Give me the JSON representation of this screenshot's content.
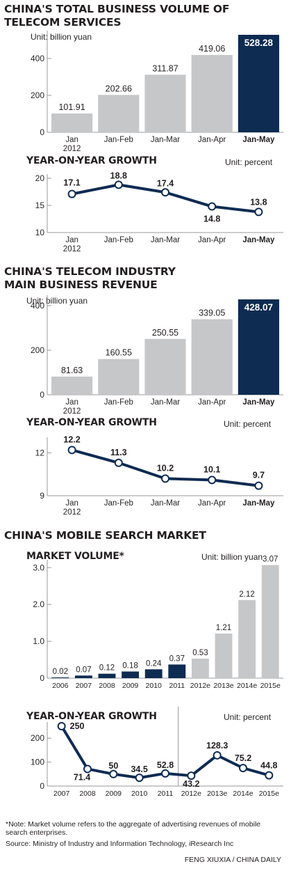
{
  "colors": {
    "gray": "#c6c7c9",
    "navy": "#0e2b52",
    "axis": "#9a9a9a",
    "text": "#231f20"
  },
  "section1": {
    "title1": "CHINA'S TOTAL BUSINESS VOLUME OF",
    "title2": "TELECOM SERVICES",
    "unit": "Unit: billion yuan",
    "growth_title": "YEAR-ON-YEAR GROWTH",
    "growth_unit": "Unit: percent"
  },
  "section2": {
    "title1": "CHINA'S TELECOM INDUSTRY",
    "title2": "MAIN BUSINESS REVENUE",
    "unit": "Unit: billion yuan",
    "growth_title": "YEAR-ON-YEAR GROWTH",
    "growth_unit": "Unit: percent"
  },
  "section3": {
    "title": "CHINA'S MOBILE SEARCH MARKET",
    "volume_title": "MARKET VOLUME*",
    "volume_unit": "Unit: billion yuan",
    "growth_title": "YEAR-ON-YEAR GROWTH",
    "growth_unit": "Unit: percent"
  },
  "footer": {
    "note": "*Note: Market volume refers to the aggregate of advertising revenues of mobile search enterprises.",
    "source": "Source: Ministry of Industry and Information Technology, iResearch Inc",
    "credit": "FENG XIUXIA / CHINA DAILY"
  },
  "chart_data": [
    {
      "type": "bar",
      "title": "CHINA'S TOTAL BUSINESS VOLUME OF TELECOM SERVICES",
      "unit": "Unit: billion yuan",
      "categories": [
        "Jan\n2012",
        "Jan-Feb",
        "Jan-Mar",
        "Jan-Apr",
        "Jan-May"
      ],
      "values": [
        101.91,
        202.66,
        311.87,
        419.06,
        528.28
      ],
      "ylim": [
        0,
        528.28
      ],
      "yticks": [
        0,
        200,
        400
      ],
      "highlight": [
        4
      ]
    },
    {
      "type": "line",
      "title": "YEAR-ON-YEAR GROWTH",
      "unit": "Unit: percent",
      "categories": [
        "Jan\n2012",
        "Jan-Feb",
        "Jan-Mar",
        "Jan-Apr",
        "Jan-May"
      ],
      "values": [
        17.1,
        18.8,
        17.4,
        14.8,
        13.8
      ],
      "ylim": [
        10,
        20
      ],
      "yticks": [
        10,
        15,
        20
      ]
    },
    {
      "type": "bar",
      "title": "CHINA'S TELECOM INDUSTRY MAIN BUSINESS REVENUE",
      "unit": "Unit: billion yuan",
      "categories": [
        "Jan\n2012",
        "Jan-Feb",
        "Jan-Mar",
        "Jan-Apr",
        "Jan-May"
      ],
      "values": [
        81.63,
        160.55,
        250.55,
        339.05,
        428.07
      ],
      "ylim": [
        0,
        428.07
      ],
      "yticks": [
        0,
        200,
        400
      ],
      "highlight": [
        4
      ]
    },
    {
      "type": "line",
      "title": "YEAR-ON-YEAR GROWTH",
      "unit": "Unit: percent",
      "categories": [
        "Jan\n2012",
        "Jan-Feb",
        "Jan-Mar",
        "Jan-Apr",
        "Jan-May"
      ],
      "values": [
        12.2,
        11.3,
        10.2,
        10.1,
        9.7
      ],
      "ylim": [
        9,
        12.8
      ],
      "yticks": [
        9,
        12
      ]
    },
    {
      "type": "bar",
      "title": "MARKET VOLUME*",
      "unit": "Unit: billion yuan",
      "categories": [
        "2006",
        "2007",
        "2008",
        "2009",
        "2010",
        "2011",
        "2012e",
        "2013e",
        "2014e",
        "2015e"
      ],
      "values": [
        0.02,
        0.07,
        0.12,
        0.18,
        0.24,
        0.37,
        0.53,
        1.21,
        2.12,
        3.07
      ],
      "ylim": [
        0,
        3.1
      ],
      "yticks": [
        "0",
        "1.0",
        "2.0",
        "3.0"
      ],
      "highlight": [
        0,
        1,
        2,
        3,
        4,
        5
      ]
    },
    {
      "type": "line",
      "title": "YEAR-ON-YEAR GROWTH",
      "unit": "Unit: percent",
      "categories": [
        "2007",
        "2008",
        "2009",
        "2010",
        "2011",
        "2012e",
        "2013e",
        "2014e",
        "2015e"
      ],
      "values": [
        250,
        71.4,
        50,
        34.5,
        52.8,
        43.2,
        128.3,
        75.2,
        44.8
      ],
      "ylim": [
        0,
        250
      ],
      "yticks": [
        0,
        100,
        200
      ]
    }
  ]
}
